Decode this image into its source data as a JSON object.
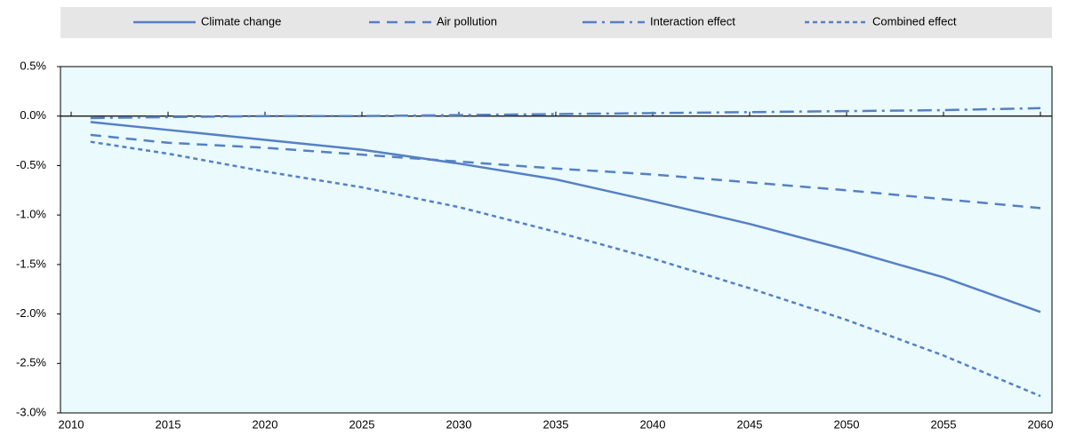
{
  "chart_data": {
    "type": "line",
    "x": [
      2011,
      2015,
      2020,
      2025,
      2030,
      2035,
      2040,
      2045,
      2050,
      2055,
      2060
    ],
    "series": [
      {
        "name": "Climate change",
        "color": "#5680c4",
        "dash": "solid",
        "values": [
          -0.06,
          -0.14,
          -0.24,
          -0.34,
          -0.48,
          -0.64,
          -0.86,
          -1.09,
          -1.35,
          -1.63,
          -1.98
        ]
      },
      {
        "name": "Air pollution",
        "color": "#5680c4",
        "dash": "dashed",
        "values": [
          -0.19,
          -0.27,
          -0.32,
          -0.39,
          -0.46,
          -0.53,
          -0.59,
          -0.67,
          -0.75,
          -0.84,
          -0.93
        ]
      },
      {
        "name": "Interaction effect",
        "color": "#5680c4",
        "dash": "dashdot",
        "values": [
          -0.02,
          -0.01,
          0.0,
          0.0,
          0.01,
          0.02,
          0.03,
          0.04,
          0.05,
          0.06,
          0.08
        ]
      },
      {
        "name": "Combined effect",
        "color": "#5680c4",
        "dash": "dotted",
        "values": [
          -0.26,
          -0.38,
          -0.56,
          -0.72,
          -0.92,
          -1.17,
          -1.44,
          -1.74,
          -2.06,
          -2.42,
          -2.83
        ]
      }
    ],
    "xlim": [
      2010,
      2060
    ],
    "xticks": [
      2010,
      2015,
      2020,
      2025,
      2030,
      2035,
      2040,
      2045,
      2050,
      2055,
      2060
    ],
    "ylim": [
      -3.0,
      0.5
    ],
    "yticks": [
      {
        "value": 0.5,
        "label": "0.5%"
      },
      {
        "value": 0.0,
        "label": "0.0%"
      },
      {
        "value": -0.5,
        "label": "-0.5%"
      },
      {
        "value": -1.0,
        "label": "-1.0%"
      },
      {
        "value": -1.5,
        "label": "-1.5%"
      },
      {
        "value": -2.0,
        "label": "-2.0%"
      },
      {
        "value": -2.5,
        "label": "-2.5%"
      },
      {
        "value": -3.0,
        "label": "-3.0%"
      }
    ],
    "legend": "top"
  }
}
